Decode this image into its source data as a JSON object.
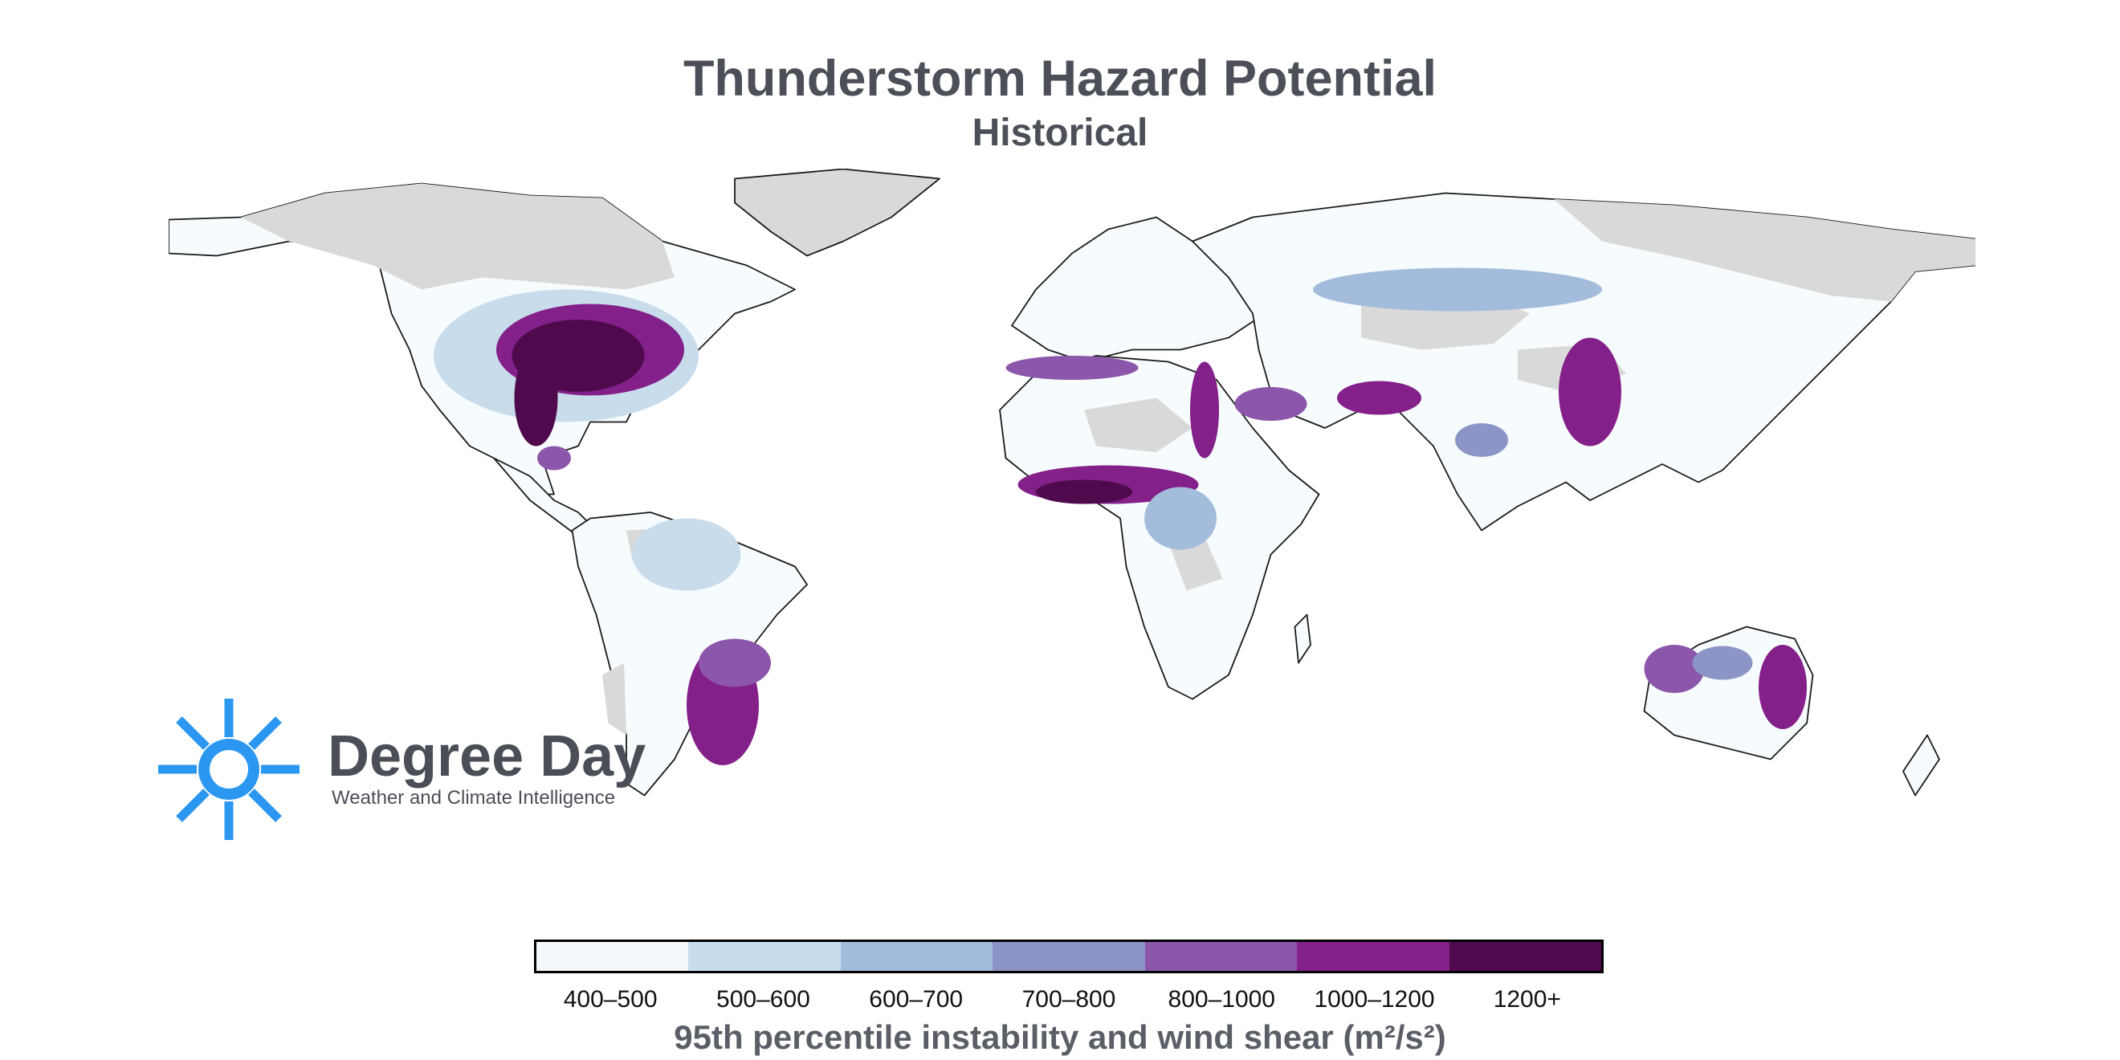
{
  "title": "Thunderstorm Hazard Potential",
  "subtitle": "Historical",
  "logo": {
    "brand": "Degree Day",
    "tagline": "Weather and Climate Intelligence",
    "color": "#2b97f0",
    "icon": "sun-icon"
  },
  "legend": {
    "title": "95th percentile instability and wind shear (m²/s²)",
    "classes": [
      {
        "label": "400–500",
        "color": "#f3f9fc"
      },
      {
        "label": "500–600",
        "color": "#c9dcec"
      },
      {
        "label": "600–700",
        "color": "#a4bcdc"
      },
      {
        "label": "700–800",
        "color": "#8c95c6"
      },
      {
        "label": "800–1000",
        "color": "#8c56ab"
      },
      {
        "label": "1000–1200",
        "color": "#84208a"
      },
      {
        "label": "1200+",
        "color": "#4e0a4c"
      }
    ]
  },
  "map": {
    "no_data_color": "#d9d9d9",
    "outline_color": "#1a1a1a"
  }
}
